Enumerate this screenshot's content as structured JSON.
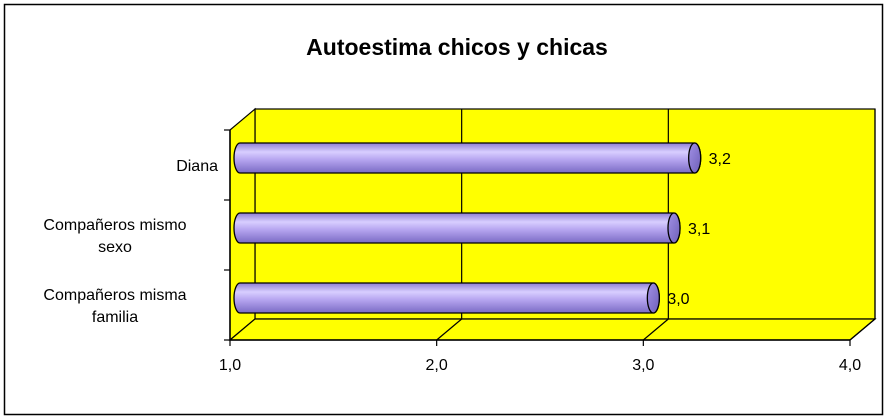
{
  "chart_data": {
    "type": "bar",
    "orientation": "horizontal",
    "style": "3d-cylinder",
    "title": "Autoestima chicos y chicas",
    "categories": [
      "Diana",
      "Compañeros mismo sexo",
      "Compañeros misma familia"
    ],
    "category_lines": [
      [
        "Diana"
      ],
      [
        "Compañeros mismo",
        "sexo"
      ],
      [
        "Compañeros misma",
        "familia"
      ]
    ],
    "values": [
      3.2,
      3.1,
      3.0
    ],
    "data_labels": [
      "3,2",
      "3,1",
      "3,0"
    ],
    "xlim": [
      1.0,
      4.0
    ],
    "x_ticks": [
      1.0,
      2.0,
      3.0,
      4.0
    ],
    "x_tick_labels": [
      "1,0",
      "2,0",
      "3,0",
      "4,0"
    ],
    "grid": true,
    "legend": false,
    "colors": {
      "plot_background": "#ffff00",
      "bar_fill": "#b7a6f0",
      "bar_outline": "#000000",
      "chart_border": "#000000"
    }
  }
}
